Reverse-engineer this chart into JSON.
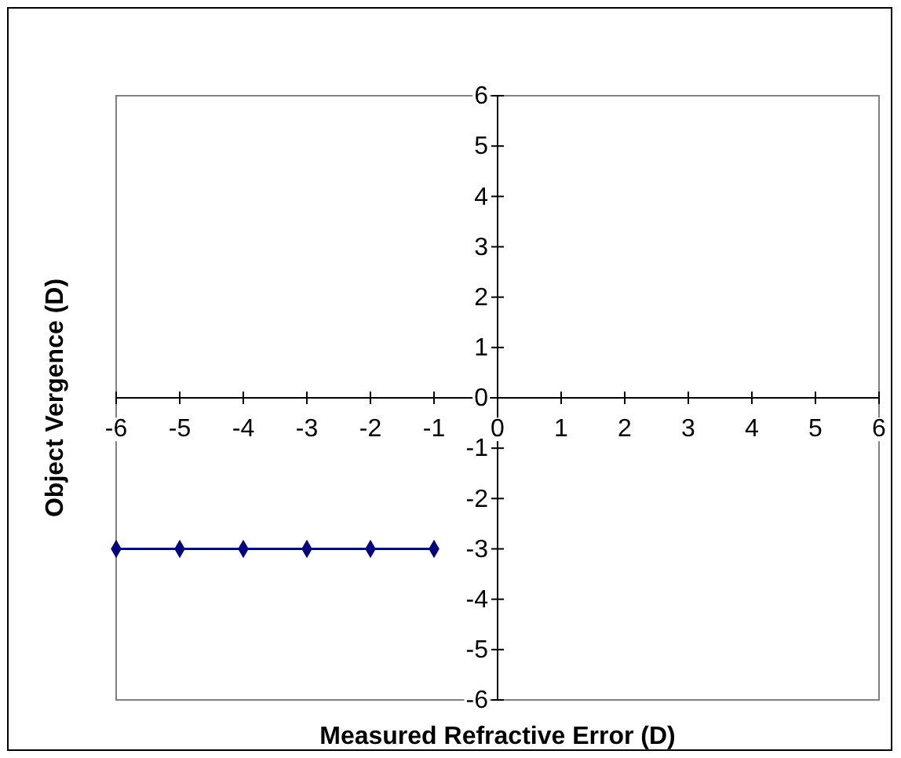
{
  "chart_data": {
    "type": "line",
    "xlabel": "Measured Refractive Error (D)",
    "ylabel": "Object Vergence (D)",
    "x": [
      -6,
      -5,
      -4,
      -3,
      -2,
      -1
    ],
    "series": [
      {
        "color": "#000080",
        "values": [
          -3,
          -3,
          -3,
          -3,
          -3,
          -3
        ]
      }
    ],
    "xlim": [
      -6,
      6
    ],
    "ylim": [
      -6,
      6
    ],
    "xticks": [
      -6,
      -5,
      -4,
      -3,
      -2,
      -1,
      0,
      1,
      2,
      3,
      4,
      5,
      6
    ],
    "yticks": [
      -6,
      -5,
      -4,
      -3,
      -2,
      -1,
      0,
      1,
      2,
      3,
      4,
      5,
      6
    ],
    "marker": "diamond",
    "line_style": "solid",
    "grid": false
  }
}
